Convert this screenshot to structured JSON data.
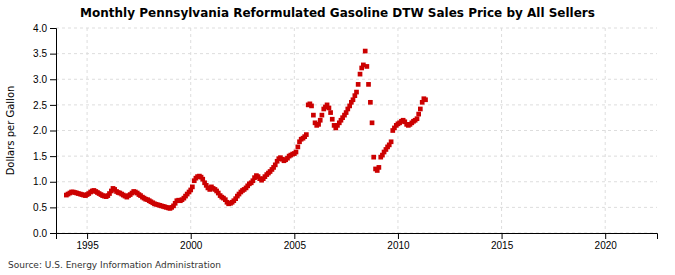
{
  "chart_data": {
    "type": "scatter",
    "title": "Monthly Pennsylvania Reformulated Gasoline DTW Sales Price by All Sellers",
    "ylabel": "Dollars per Gallon",
    "annotations": [
      "Source: U.S. Energy Information Administration"
    ],
    "color": "#cc0000",
    "marker": "square",
    "grid": true,
    "xlim": [
      1993.5,
      2022.5
    ],
    "ylim": [
      0.0,
      4.0
    ],
    "xticks": [
      1995,
      2000,
      2005,
      2010,
      2015,
      2020
    ],
    "yticks": [
      {
        "value": 0.0,
        "label": "0.0"
      },
      0.5,
      {
        "value": 1.0,
        "label": "1.0"
      },
      1.5,
      {
        "value": 2.0,
        "label": "2.0"
      },
      2.5,
      {
        "value": 3.0,
        "label": "3.0"
      },
      3.5,
      {
        "value": 4.0,
        "label": "4.0"
      }
    ],
    "x": [
      1994.0,
      1994.08,
      1994.17,
      1994.25,
      1994.33,
      1994.42,
      1994.5,
      1994.58,
      1994.67,
      1994.75,
      1994.83,
      1994.92,
      1995.0,
      1995.08,
      1995.17,
      1995.25,
      1995.33,
      1995.42,
      1995.5,
      1995.58,
      1995.67,
      1995.75,
      1995.83,
      1995.92,
      1996.0,
      1996.08,
      1996.17,
      1996.25,
      1996.33,
      1996.42,
      1996.5,
      1996.58,
      1996.67,
      1996.75,
      1996.83,
      1996.92,
      1997.0,
      1997.08,
      1997.17,
      1997.25,
      1997.33,
      1997.42,
      1997.5,
      1997.58,
      1997.67,
      1997.75,
      1997.83,
      1997.92,
      1998.0,
      1998.08,
      1998.17,
      1998.25,
      1998.33,
      1998.42,
      1998.5,
      1998.58,
      1998.67,
      1998.75,
      1998.83,
      1998.92,
      1999.0,
      1999.08,
      1999.17,
      1999.25,
      1999.33,
      1999.42,
      1999.5,
      1999.58,
      1999.67,
      1999.75,
      1999.83,
      1999.92,
      2000.0,
      2000.08,
      2000.17,
      2000.25,
      2000.33,
      2000.42,
      2000.5,
      2000.58,
      2000.67,
      2000.75,
      2000.83,
      2000.92,
      2001.0,
      2001.08,
      2001.17,
      2001.25,
      2001.33,
      2001.42,
      2001.5,
      2001.58,
      2001.67,
      2001.75,
      2001.83,
      2001.92,
      2002.0,
      2002.08,
      2002.17,
      2002.25,
      2002.33,
      2002.42,
      2002.5,
      2002.58,
      2002.67,
      2002.75,
      2002.83,
      2002.92,
      2003.0,
      2003.08,
      2003.17,
      2003.25,
      2003.33,
      2003.42,
      2003.5,
      2003.58,
      2003.67,
      2003.75,
      2003.83,
      2003.92,
      2004.0,
      2004.08,
      2004.17,
      2004.25,
      2004.33,
      2004.42,
      2004.5,
      2004.58,
      2004.67,
      2004.75,
      2004.83,
      2004.92,
      2005.0,
      2005.08,
      2005.17,
      2005.25,
      2005.33,
      2005.42,
      2005.5,
      2005.58,
      2005.67,
      2005.75,
      2005.83,
      2005.92,
      2006.0,
      2006.08,
      2006.17,
      2006.25,
      2006.33,
      2006.42,
      2006.5,
      2006.58,
      2006.67,
      2006.75,
      2006.83,
      2006.92,
      2007.0,
      2007.08,
      2007.17,
      2007.25,
      2007.33,
      2007.42,
      2007.5,
      2007.58,
      2007.67,
      2007.75,
      2007.83,
      2007.92,
      2008.0,
      2008.08,
      2008.17,
      2008.25,
      2008.33,
      2008.42,
      2008.5,
      2008.58,
      2008.67,
      2008.75,
      2008.83,
      2008.92,
      2009.0,
      2009.08,
      2009.17,
      2009.25,
      2009.33,
      2009.42,
      2009.5,
      2009.58,
      2009.67,
      2009.75,
      2009.83,
      2009.92,
      2010.0,
      2010.08,
      2010.17,
      2010.25,
      2010.33,
      2010.42,
      2010.5,
      2010.58,
      2010.67,
      2010.75,
      2010.83,
      2010.92,
      2011.0,
      2011.08,
      2011.17,
      2011.25,
      2011.33
    ],
    "values": [
      0.74,
      0.76,
      0.78,
      0.8,
      0.8,
      0.79,
      0.78,
      0.77,
      0.76,
      0.75,
      0.74,
      0.73,
      0.75,
      0.77,
      0.8,
      0.82,
      0.83,
      0.81,
      0.79,
      0.77,
      0.75,
      0.73,
      0.72,
      0.71,
      0.73,
      0.77,
      0.82,
      0.87,
      0.85,
      0.81,
      0.79,
      0.78,
      0.76,
      0.74,
      0.72,
      0.7,
      0.73,
      0.75,
      0.78,
      0.81,
      0.8,
      0.78,
      0.75,
      0.73,
      0.7,
      0.68,
      0.66,
      0.65,
      0.63,
      0.61,
      0.59,
      0.57,
      0.56,
      0.55,
      0.54,
      0.53,
      0.52,
      0.51,
      0.5,
      0.49,
      0.48,
      0.5,
      0.53,
      0.58,
      0.63,
      0.64,
      0.63,
      0.65,
      0.68,
      0.72,
      0.76,
      0.8,
      0.84,
      0.9,
      1.02,
      1.07,
      1.1,
      1.11,
      1.09,
      1.05,
      0.98,
      0.93,
      0.88,
      0.85,
      0.9,
      0.87,
      0.85,
      0.82,
      0.78,
      0.73,
      0.7,
      0.68,
      0.65,
      0.6,
      0.57,
      0.58,
      0.6,
      0.63,
      0.67,
      0.72,
      0.76,
      0.8,
      0.83,
      0.85,
      0.88,
      0.92,
      0.96,
      0.98,
      1.02,
      1.08,
      1.12,
      1.1,
      1.06,
      1.03,
      1.06,
      1.1,
      1.14,
      1.17,
      1.2,
      1.24,
      1.28,
      1.33,
      1.4,
      1.45,
      1.47,
      1.44,
      1.41,
      1.43,
      1.46,
      1.5,
      1.52,
      1.54,
      1.55,
      1.58,
      1.68,
      1.78,
      1.83,
      1.85,
      1.88,
      1.92,
      2.5,
      2.52,
      2.48,
      2.3,
      2.15,
      2.1,
      2.12,
      2.2,
      2.3,
      2.42,
      2.46,
      2.5,
      2.44,
      2.35,
      2.22,
      2.1,
      2.05,
      2.1,
      2.15,
      2.2,
      2.25,
      2.3,
      2.35,
      2.42,
      2.48,
      2.55,
      2.6,
      2.68,
      2.75,
      2.9,
      3.1,
      3.22,
      3.28,
      3.55,
      3.25,
      2.9,
      2.55,
      2.15,
      1.48,
      1.25,
      1.22,
      1.28,
      1.48,
      1.52,
      1.58,
      1.63,
      1.68,
      1.72,
      1.78,
      2.0,
      2.05,
      2.1,
      2.13,
      2.15,
      2.18,
      2.2,
      2.17,
      2.12,
      2.1,
      2.12,
      2.15,
      2.18,
      2.2,
      2.23,
      2.32,
      2.42,
      2.55,
      2.62,
      2.6
    ]
  }
}
